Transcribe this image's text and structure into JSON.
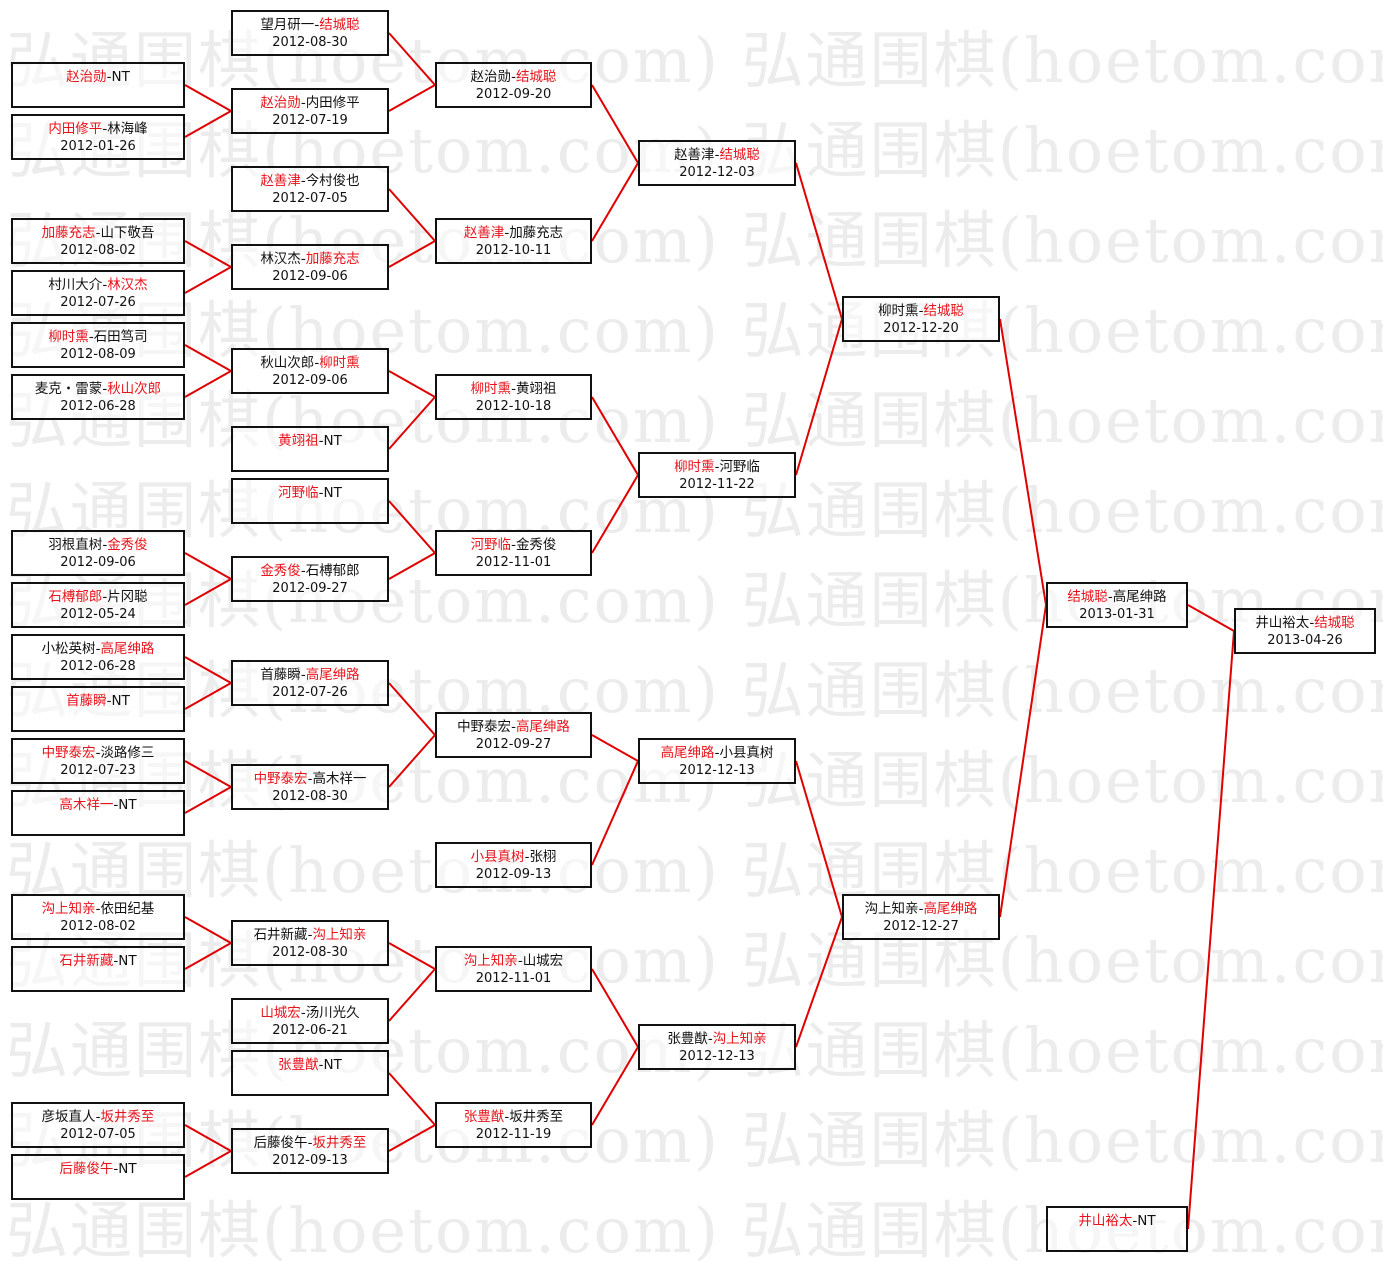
{
  "watermark": "弘通围棋(hoetom.com) 弘通围棋(hoetom.com) 弘",
  "colors": {
    "winner": "#e8141c",
    "connector": "#e00000",
    "border": "#111111"
  },
  "rounds": [
    [
      {
        "p1": "赵治勋",
        "p2": "NT",
        "date": "",
        "winner": 1
      },
      {
        "p1": "内田修平",
        "p2": "林海峰",
        "date": "2012-01-26",
        "winner": 1
      },
      {
        "p1": "加藤充志",
        "p2": "山下敬吾",
        "date": "2012-08-02",
        "winner": 1
      },
      {
        "p1": "村川大介",
        "p2": "林汉杰",
        "date": "2012-07-26",
        "winner": 2
      },
      {
        "p1": "柳时熏",
        "p2": "石田笃司",
        "date": "2012-08-09",
        "winner": 1
      },
      {
        "p1": "麦克・雷蒙",
        "p2": "秋山次郎",
        "date": "2012-06-28",
        "winner": 2
      },
      {
        "p1": "羽根直树",
        "p2": "金秀俊",
        "date": "2012-09-06",
        "winner": 2
      },
      {
        "p1": "石榑郁郎",
        "p2": "片冈聪",
        "date": "2012-05-24",
        "winner": 1
      },
      {
        "p1": "小松英树",
        "p2": "高尾绅路",
        "date": "2012-06-28",
        "winner": 2
      },
      {
        "p1": "首藤瞬",
        "p2": "NT",
        "date": "",
        "winner": 1
      },
      {
        "p1": "中野泰宏",
        "p2": "淡路修三",
        "date": "2012-07-23",
        "winner": 1
      },
      {
        "p1": "高木祥一",
        "p2": "NT",
        "date": "",
        "winner": 1
      },
      {
        "p1": "沟上知亲",
        "p2": "依田纪基",
        "date": "2012-08-02",
        "winner": 1
      },
      {
        "p1": "石井新藏",
        "p2": "NT",
        "date": "",
        "winner": 1
      },
      {
        "p1": "彦坂直人",
        "p2": "坂井秀至",
        "date": "2012-07-05",
        "winner": 2
      },
      {
        "p1": "后藤俊午",
        "p2": "NT",
        "date": "",
        "winner": 1
      }
    ],
    [
      {
        "p1": "望月研一",
        "p2": "结城聪",
        "date": "2012-08-30",
        "winner": 2
      },
      {
        "p1": "赵治勋",
        "p2": "内田修平",
        "date": "2012-07-19",
        "winner": 1
      },
      {
        "p1": "赵善津",
        "p2": "今村俊也",
        "date": "2012-07-05",
        "winner": 1
      },
      {
        "p1": "林汉杰",
        "p2": "加藤充志",
        "date": "2012-09-06",
        "winner": 2
      },
      {
        "p1": "秋山次郎",
        "p2": "柳时熏",
        "date": "2012-09-06",
        "winner": 2
      },
      {
        "p1": "黄翊祖",
        "p2": "NT",
        "date": "",
        "winner": 1
      },
      {
        "p1": "河野临",
        "p2": "NT",
        "date": "",
        "winner": 1
      },
      {
        "p1": "金秀俊",
        "p2": "石榑郁郎",
        "date": "2012-09-27",
        "winner": 1
      },
      {
        "p1": "首藤瞬",
        "p2": "高尾绅路",
        "date": "2012-07-26",
        "winner": 2
      },
      {
        "p1": "中野泰宏",
        "p2": "高木祥一",
        "date": "2012-08-30",
        "winner": 1
      },
      {
        "p1": "石井新藏",
        "p2": "沟上知亲",
        "date": "2012-08-30",
        "winner": 2
      },
      {
        "p1": "山城宏",
        "p2": "汤川光久",
        "date": "2012-06-21",
        "winner": 1
      },
      {
        "p1": "张豊猷",
        "p2": "NT",
        "date": "",
        "winner": 1
      },
      {
        "p1": "后藤俊午",
        "p2": "坂井秀至",
        "date": "2012-09-13",
        "winner": 2
      }
    ],
    [
      {
        "p1": "赵治勋",
        "p2": "结城聪",
        "date": "2012-09-20",
        "winner": 2
      },
      {
        "p1": "赵善津",
        "p2": "加藤充志",
        "date": "2012-10-11",
        "winner": 1
      },
      {
        "p1": "柳时熏",
        "p2": "黄翊祖",
        "date": "2012-10-18",
        "winner": 1
      },
      {
        "p1": "河野临",
        "p2": "金秀俊",
        "date": "2012-11-01",
        "winner": 1
      },
      {
        "p1": "中野泰宏",
        "p2": "高尾绅路",
        "date": "2012-09-27",
        "winner": 2
      },
      {
        "p1": "小县真树",
        "p2": "张栩",
        "date": "2012-09-13",
        "winner": 1
      },
      {
        "p1": "沟上知亲",
        "p2": "山城宏",
        "date": "2012-11-01",
        "winner": 1
      },
      {
        "p1": "张豊猷",
        "p2": "坂井秀至",
        "date": "2012-11-19",
        "winner": 1
      }
    ],
    [
      {
        "p1": "赵善津",
        "p2": "结城聪",
        "date": "2012-12-03",
        "winner": 2
      },
      {
        "p1": "柳时熏",
        "p2": "河野临",
        "date": "2012-11-22",
        "winner": 1
      },
      {
        "p1": "高尾绅路",
        "p2": "小县真树",
        "date": "2012-12-13",
        "winner": 1
      },
      {
        "p1": "张豊猷",
        "p2": "沟上知亲",
        "date": "2012-12-13",
        "winner": 2
      }
    ],
    [
      {
        "p1": "柳时熏",
        "p2": "结城聪",
        "date": "2012-12-20",
        "winner": 2
      },
      {
        "p1": "沟上知亲",
        "p2": "高尾绅路",
        "date": "2012-12-27",
        "winner": 2
      }
    ],
    [
      {
        "p1": "结城聪",
        "p2": "高尾绅路",
        "date": "2013-01-31",
        "winner": 1
      },
      {
        "p1": "井山裕太",
        "p2": "NT",
        "date": "",
        "winner": 1
      }
    ],
    [
      {
        "p1": "井山裕太",
        "p2": "结城聪",
        "date": "2013-04-26",
        "winner": 2
      }
    ]
  ]
}
